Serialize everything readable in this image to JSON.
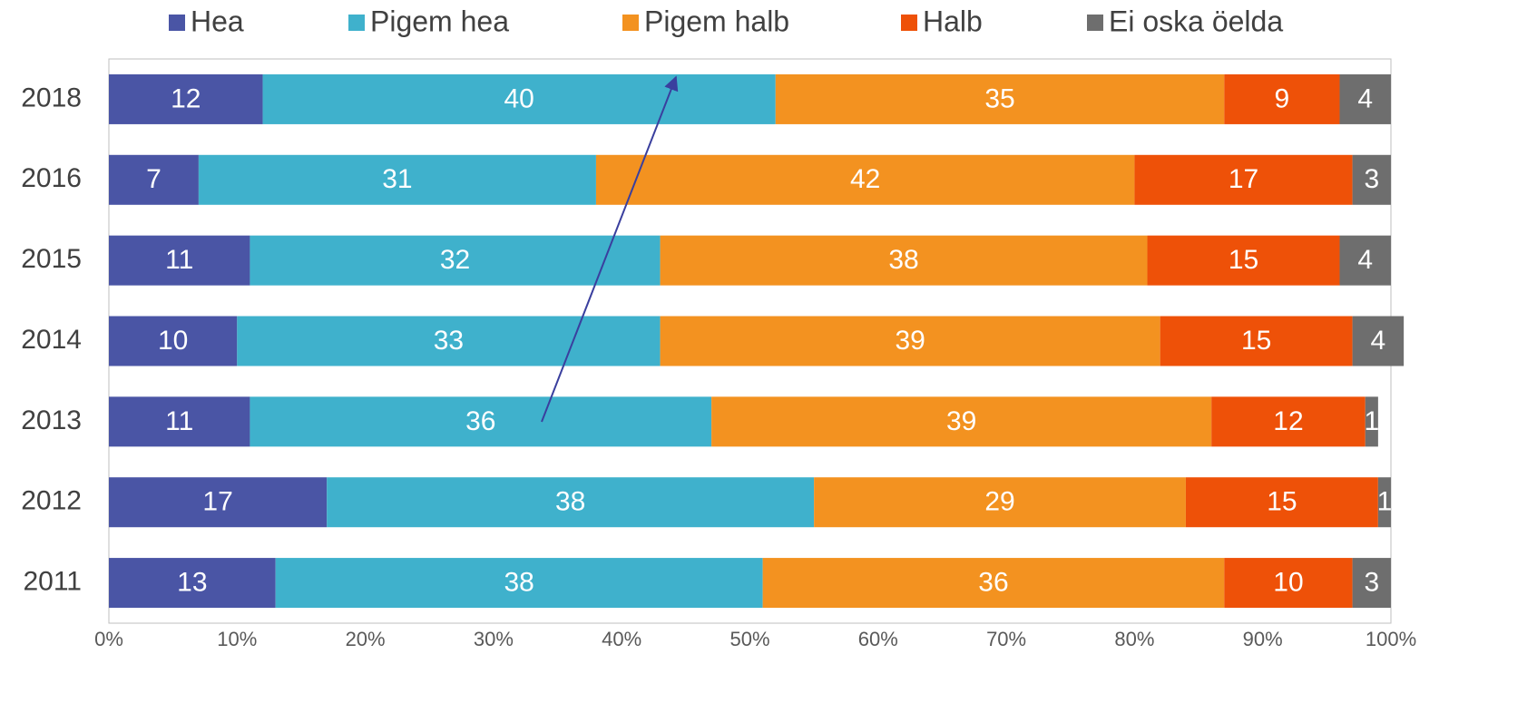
{
  "chart_data": {
    "type": "bar",
    "orientation": "horizontal",
    "stacked": true,
    "categories": [
      "2018",
      "2016",
      "2015",
      "2014",
      "2013",
      "2012",
      "2011"
    ],
    "series": [
      {
        "name": "Hea",
        "color": "#4a55a5",
        "values": [
          12,
          7,
          11,
          10,
          11,
          17,
          13
        ]
      },
      {
        "name": "Pigem hea",
        "color": "#3fb1cc",
        "values": [
          40,
          31,
          32,
          33,
          36,
          38,
          38
        ]
      },
      {
        "name": "Pigem halb",
        "color": "#f39220",
        "values": [
          35,
          42,
          38,
          39,
          39,
          29,
          36
        ]
      },
      {
        "name": "Halb",
        "color": "#ee5108",
        "values": [
          9,
          17,
          15,
          15,
          12,
          15,
          10
        ]
      },
      {
        "name": "Ei oska öelda",
        "color": "#6e6e6e",
        "values": [
          4,
          3,
          4,
          4,
          1,
          1,
          3
        ]
      }
    ],
    "xlim": [
      0,
      100
    ],
    "xticks": [
      {
        "value": 0,
        "label": "0%"
      },
      {
        "value": 10,
        "label": "10%"
      },
      {
        "value": 20,
        "label": "20%"
      },
      {
        "value": 30,
        "label": "30%"
      },
      {
        "value": 40,
        "label": "40%"
      },
      {
        "value": 50,
        "label": "50%"
      },
      {
        "value": 60,
        "label": "60%"
      },
      {
        "value": 70,
        "label": "70%"
      },
      {
        "value": 80,
        "label": "80%"
      },
      {
        "value": 90,
        "label": "90%"
      },
      {
        "value": 100,
        "label": "100%"
      }
    ],
    "legend": "top"
  }
}
